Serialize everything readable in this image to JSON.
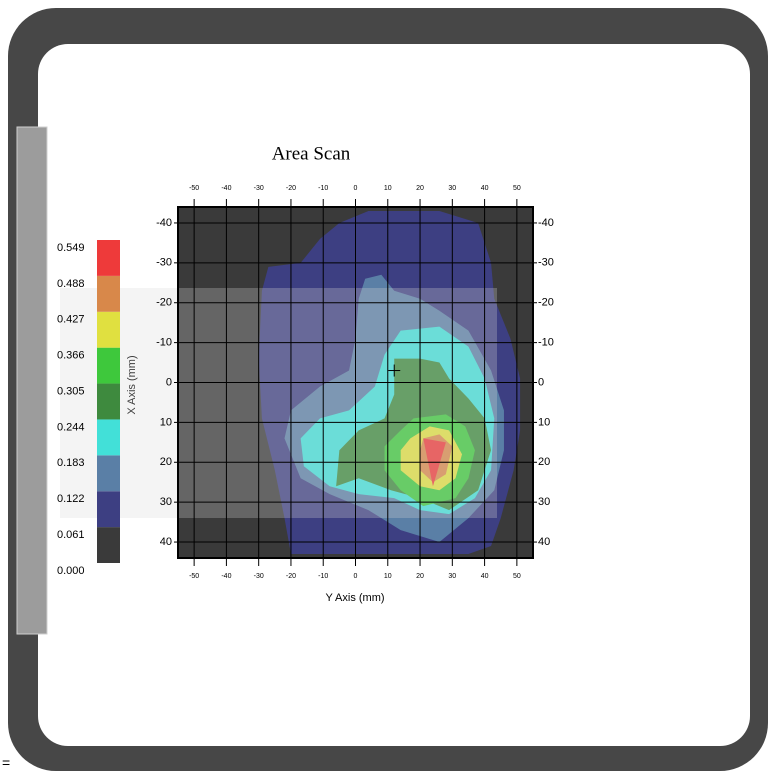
{
  "corner_text": "=",
  "chart_data": {
    "type": "contour",
    "title": "Area Scan",
    "x_label": "Y Axis (mm)",
    "y_label": "X Axis (mm)",
    "xlim": [
      -55,
      55
    ],
    "ylim": [
      -44,
      44
    ],
    "y_reversed": true,
    "xticks": [
      -50,
      -40,
      -30,
      -20,
      -10,
      0,
      10,
      20,
      30,
      40,
      50
    ],
    "yticks": [
      -40,
      -30,
      -20,
      -10,
      0,
      10,
      20,
      30,
      40
    ],
    "grid": true,
    "levels": [
      {
        "value": 0,
        "label": "0.000"
      },
      0.061,
      0.122,
      0.183,
      0.244,
      0.305,
      0.366,
      0.427,
      0.488,
      0.549
    ],
    "colors": [
      "#3a3a3a",
      "#3d3f82",
      "#5a7fa6",
      "#42e0d8",
      "#3e8a3e",
      "#3ec83c",
      "#e0e040",
      "#d8884a",
      "#ee3a3a"
    ],
    "regions": [
      {
        "level": 1,
        "x": [
          -29,
          -27,
          -17,
          -11,
          -5,
          4,
          26,
          38,
          42,
          43,
          48,
          51,
          51,
          49,
          45,
          42,
          35,
          -20,
          -22,
          -25,
          -29,
          -30
        ],
        "y": [
          -23,
          -29,
          -30,
          -36,
          -40,
          -43,
          -43,
          -40,
          -30,
          -21,
          -11,
          -1,
          12,
          22,
          34,
          41,
          43,
          43,
          34,
          22,
          9,
          -6
        ]
      },
      {
        "level": 2,
        "x": [
          3,
          8,
          12,
          20,
          26,
          35,
          42,
          46,
          46,
          43,
          35,
          26,
          14,
          4,
          -8,
          -17,
          -22,
          -20,
          -11,
          -2,
          0,
          1
        ],
        "y": [
          -26,
          -27,
          -23,
          -21,
          -18,
          -13,
          -3,
          7,
          17,
          27,
          34,
          40,
          37,
          32,
          28,
          24,
          14,
          7,
          1,
          -3,
          -11,
          -21
        ]
      },
      {
        "level": 3,
        "x": [
          14,
          26,
          35,
          40,
          43,
          42,
          37,
          29,
          20,
          12,
          1,
          -8,
          -16,
          -17,
          -11,
          -2,
          6,
          9
        ],
        "y": [
          -13,
          -14,
          -9,
          -1,
          9,
          22,
          29,
          33,
          32,
          29,
          28,
          26,
          21,
          14,
          9,
          7,
          1,
          -7
        ]
      },
      {
        "level": 4,
        "x": [
          12,
          20,
          26,
          29,
          35,
          40,
          42,
          38,
          29,
          20,
          11,
          1,
          -6,
          -5,
          1,
          9,
          12
        ],
        "y": [
          -6,
          -6,
          -5,
          -1,
          4,
          9,
          17,
          27,
          32,
          29,
          27,
          24,
          26,
          17,
          12,
          9,
          3
        ]
      },
      {
        "level": 5,
        "x": [
          14,
          18,
          28,
          34,
          37,
          35,
          31,
          21,
          14,
          9,
          9
        ],
        "y": [
          12,
          9,
          8,
          11,
          17,
          24,
          29,
          31,
          27,
          22,
          16
        ]
      },
      {
        "level": 6,
        "x": [
          17,
          23,
          29,
          33,
          31,
          26,
          20,
          14,
          14
        ],
        "y": [
          14,
          11,
          12,
          18,
          24,
          27,
          26,
          22,
          17
        ]
      },
      {
        "level": 7,
        "x": [
          21,
          26,
          30,
          28,
          24,
          20,
          20
        ],
        "y": [
          14,
          13,
          16,
          23,
          25,
          22,
          17
        ]
      },
      {
        "level": 8,
        "x": [
          21,
          28,
          24
        ],
        "y": [
          14,
          15,
          26
        ]
      }
    ],
    "marker": {
      "x": 12,
      "y": -3
    }
  }
}
